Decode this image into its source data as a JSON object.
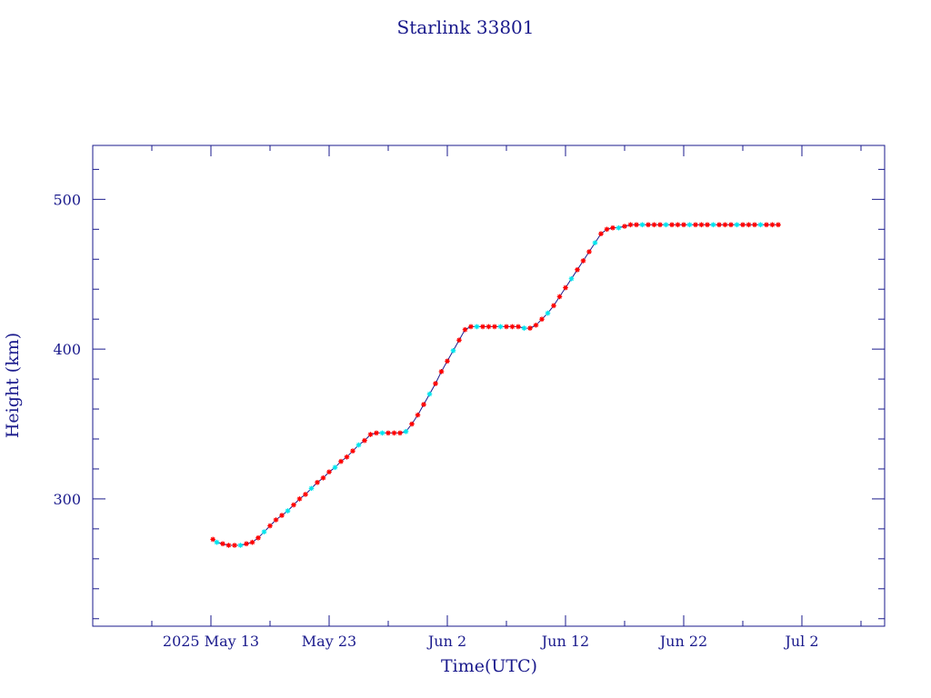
{
  "chart_data": {
    "type": "scatter",
    "title": "Starlink 33801",
    "xlabel": "Time(UTC)",
    "ylabel": "Height (km)",
    "x_unit": "date (2025, UTC)",
    "xlim": [
      "2025-05-03",
      "2025-07-09"
    ],
    "ylim": [
      215,
      536
    ],
    "grid": false,
    "legend": "none",
    "x_ticks": [
      {
        "date": "2025-05-13",
        "label": "2025 May 13"
      },
      {
        "date": "2025-05-23",
        "label": "May 23"
      },
      {
        "date": "2025-06-02",
        "label": "Jun  2"
      },
      {
        "date": "2025-06-12",
        "label": "Jun 12"
      },
      {
        "date": "2025-06-22",
        "label": "Jun 22"
      },
      {
        "date": "2025-07-02",
        "label": "Jul  2"
      }
    ],
    "y_ticks": [
      300,
      400,
      500
    ],
    "colors": {
      "axes": "#1a1a8c",
      "line": "#1a1a8c",
      "marker_primary": "#ff0000",
      "marker_secondary": "#00e5ee"
    },
    "series": [
      {
        "values": [
          [
            "2025-05-13T04:00",
            273
          ],
          [
            "2025-05-13T12:00",
            271
          ],
          [
            "2025-05-14T00:00",
            270
          ],
          [
            "2025-05-14T12:00",
            269
          ],
          [
            "2025-05-15T00:00",
            269
          ],
          [
            "2025-05-15T12:00",
            269
          ],
          [
            "2025-05-16T00:00",
            270
          ],
          [
            "2025-05-16T12:00",
            271
          ],
          [
            "2025-05-17T00:00",
            274
          ],
          [
            "2025-05-17T12:00",
            278
          ],
          [
            "2025-05-18T00:00",
            282
          ],
          [
            "2025-05-18T12:00",
            286
          ],
          [
            "2025-05-19T00:00",
            289
          ],
          [
            "2025-05-19T12:00",
            292
          ],
          [
            "2025-05-20T00:00",
            296
          ],
          [
            "2025-05-20T12:00",
            300
          ],
          [
            "2025-05-21T00:00",
            303
          ],
          [
            "2025-05-21T12:00",
            307
          ],
          [
            "2025-05-22T00:00",
            311
          ],
          [
            "2025-05-22T12:00",
            314
          ],
          [
            "2025-05-23T00:00",
            318
          ],
          [
            "2025-05-23T12:00",
            321
          ],
          [
            "2025-05-24T00:00",
            325
          ],
          [
            "2025-05-24T12:00",
            328
          ],
          [
            "2025-05-25T00:00",
            332
          ],
          [
            "2025-05-25T12:00",
            336
          ],
          [
            "2025-05-26T00:00",
            339
          ],
          [
            "2025-05-26T12:00",
            343
          ],
          [
            "2025-05-27T00:00",
            344
          ],
          [
            "2025-05-27T12:00",
            344
          ],
          [
            "2025-05-28T00:00",
            344
          ],
          [
            "2025-05-28T12:00",
            344
          ],
          [
            "2025-05-29T00:00",
            344
          ],
          [
            "2025-05-29T12:00",
            345
          ],
          [
            "2025-05-30T00:00",
            350
          ],
          [
            "2025-05-30T12:00",
            356
          ],
          [
            "2025-05-31T00:00",
            363
          ],
          [
            "2025-05-31T12:00",
            370
          ],
          [
            "2025-06-01T00:00",
            377
          ],
          [
            "2025-06-01T12:00",
            385
          ],
          [
            "2025-06-02T00:00",
            392
          ],
          [
            "2025-06-02T12:00",
            399
          ],
          [
            "2025-06-03T00:00",
            406
          ],
          [
            "2025-06-03T12:00",
            413
          ],
          [
            "2025-06-04T00:00",
            415
          ],
          [
            "2025-06-04T12:00",
            415
          ],
          [
            "2025-06-05T00:00",
            415
          ],
          [
            "2025-06-05T12:00",
            415
          ],
          [
            "2025-06-06T00:00",
            415
          ],
          [
            "2025-06-06T12:00",
            415
          ],
          [
            "2025-06-07T00:00",
            415
          ],
          [
            "2025-06-07T12:00",
            415
          ],
          [
            "2025-06-08T00:00",
            415
          ],
          [
            "2025-06-08T12:00",
            414
          ],
          [
            "2025-06-09T00:00",
            414
          ],
          [
            "2025-06-09T12:00",
            416
          ],
          [
            "2025-06-10T00:00",
            420
          ],
          [
            "2025-06-10T12:00",
            424
          ],
          [
            "2025-06-11T00:00",
            429
          ],
          [
            "2025-06-11T12:00",
            435
          ],
          [
            "2025-06-12T00:00",
            441
          ],
          [
            "2025-06-12T12:00",
            447
          ],
          [
            "2025-06-13T00:00",
            453
          ],
          [
            "2025-06-13T12:00",
            459
          ],
          [
            "2025-06-14T00:00",
            465
          ],
          [
            "2025-06-14T12:00",
            471
          ],
          [
            "2025-06-15T00:00",
            477
          ],
          [
            "2025-06-15T12:00",
            480
          ],
          [
            "2025-06-16T00:00",
            481
          ],
          [
            "2025-06-16T12:00",
            481
          ],
          [
            "2025-06-17T00:00",
            482
          ],
          [
            "2025-06-17T12:00",
            483
          ],
          [
            "2025-06-18T00:00",
            483
          ],
          [
            "2025-06-18T12:00",
            483
          ],
          [
            "2025-06-19T00:00",
            483
          ],
          [
            "2025-06-19T12:00",
            483
          ],
          [
            "2025-06-20T00:00",
            483
          ],
          [
            "2025-06-20T12:00",
            483
          ],
          [
            "2025-06-21T00:00",
            483
          ],
          [
            "2025-06-21T12:00",
            483
          ],
          [
            "2025-06-22T00:00",
            483
          ],
          [
            "2025-06-22T12:00",
            483
          ],
          [
            "2025-06-23T00:00",
            483
          ],
          [
            "2025-06-23T12:00",
            483
          ],
          [
            "2025-06-24T00:00",
            483
          ],
          [
            "2025-06-24T12:00",
            483
          ],
          [
            "2025-06-25T00:00",
            483
          ],
          [
            "2025-06-25T12:00",
            483
          ],
          [
            "2025-06-26T00:00",
            483
          ],
          [
            "2025-06-26T12:00",
            483
          ],
          [
            "2025-06-27T00:00",
            483
          ],
          [
            "2025-06-27T12:00",
            483
          ],
          [
            "2025-06-28T00:00",
            483
          ],
          [
            "2025-06-28T12:00",
            483
          ],
          [
            "2025-06-29T00:00",
            483
          ],
          [
            "2025-06-29T12:00",
            483
          ],
          [
            "2025-06-30T00:00",
            483
          ]
        ]
      }
    ]
  }
}
